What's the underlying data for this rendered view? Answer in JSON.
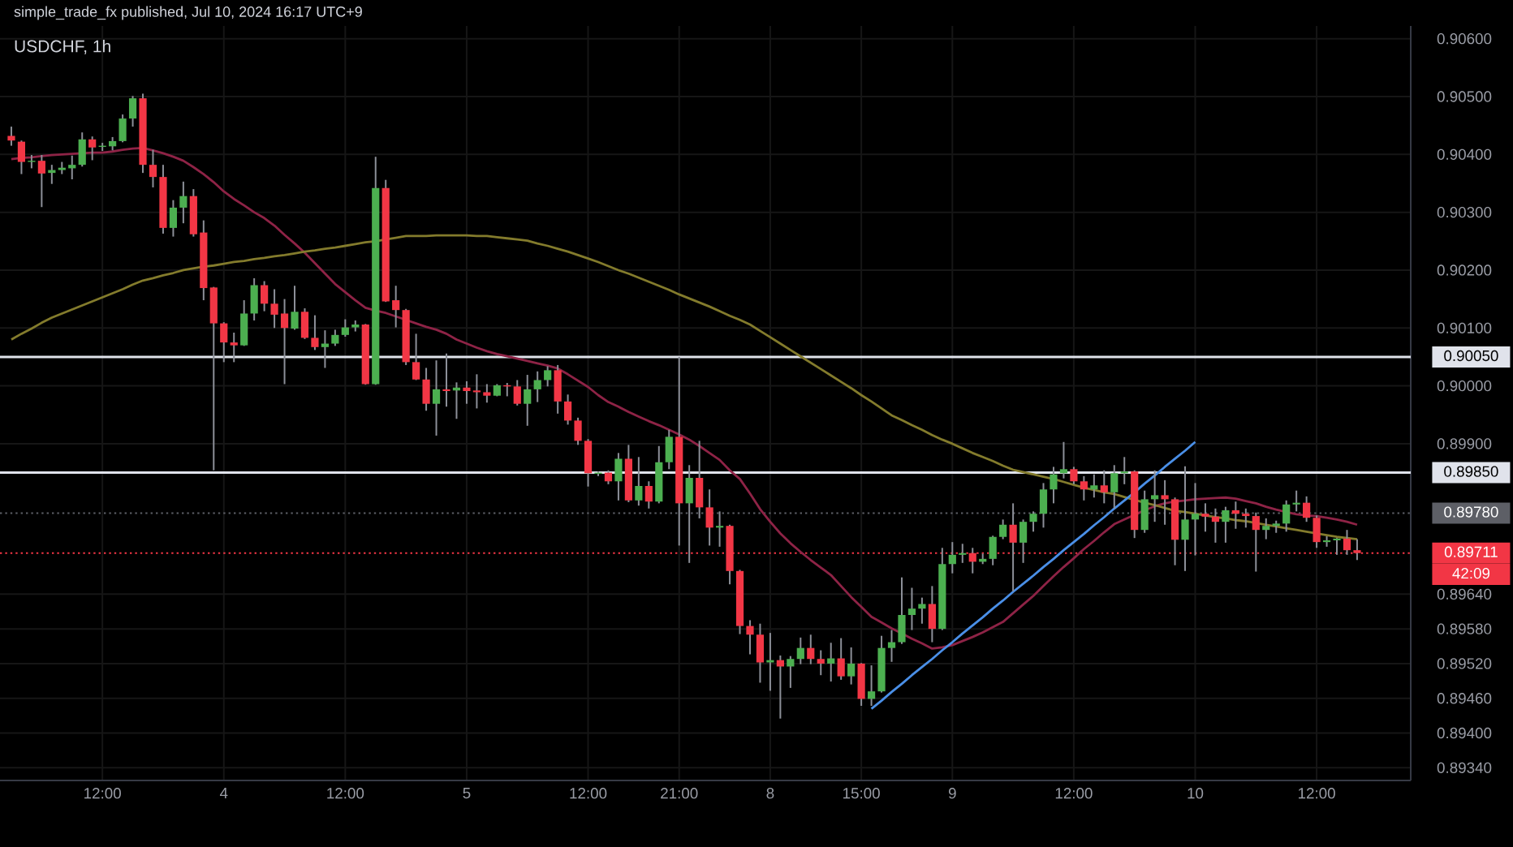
{
  "chart_data": {
    "type": "candlestick",
    "title": "USDCHF, 1h",
    "annotations": [
      "simple_trade_fx published, Jul 10, 2024 16:17 UTC+9",
      "42:09"
    ],
    "categories": [
      null,
      null,
      null,
      null,
      null,
      null,
      null,
      null,
      null,
      "12:00",
      null,
      null,
      null,
      null,
      null,
      null,
      null,
      null,
      null,
      null,
      null,
      "4",
      null,
      null,
      null,
      null,
      null,
      null,
      null,
      null,
      null,
      null,
      null,
      "12:00",
      null,
      null,
      null,
      null,
      null,
      null,
      null,
      null,
      null,
      null,
      null,
      "5",
      null,
      null,
      null,
      null,
      null,
      null,
      null,
      null,
      null,
      null,
      null,
      "12:00",
      null,
      null,
      null,
      null,
      null,
      null,
      null,
      null,
      "21:00",
      null,
      null,
      null,
      null,
      null,
      null,
      null,
      null,
      "8",
      null,
      null,
      null,
      null,
      null,
      null,
      null,
      null,
      "15:00",
      null,
      null,
      null,
      null,
      null,
      null,
      null,
      null,
      "9",
      null,
      null,
      null,
      null,
      null,
      null,
      null,
      null,
      null,
      null,
      null,
      "12:00",
      null,
      null,
      null,
      null,
      null,
      null,
      null,
      null,
      null,
      null,
      null,
      "10",
      null,
      null,
      null,
      null,
      null,
      null,
      null,
      null,
      null,
      null,
      null,
      "12:00",
      null,
      null,
      null,
      null
    ],
    "ohlc": [
      [
        0.90432,
        0.90448,
        0.90415,
        0.90424
      ],
      [
        0.90422,
        0.90424,
        0.90366,
        0.90387
      ],
      [
        0.90387,
        0.90399,
        0.90376,
        0.90389
      ],
      [
        0.90389,
        0.90399,
        0.90309,
        0.90367
      ],
      [
        0.90368,
        0.90382,
        0.90349,
        0.90373
      ],
      [
        0.90373,
        0.90387,
        0.90366,
        0.90377
      ],
      [
        0.90376,
        0.90398,
        0.90357,
        0.90382
      ],
      [
        0.90382,
        0.90438,
        0.90379,
        0.90426
      ],
      [
        0.90426,
        0.90431,
        0.9039,
        0.90412
      ],
      [
        0.90413,
        0.9042,
        0.90406,
        0.90415
      ],
      [
        0.90414,
        0.9043,
        0.90407,
        0.90423
      ],
      [
        0.90423,
        0.90469,
        0.90421,
        0.90462
      ],
      [
        0.90462,
        0.90501,
        0.90448,
        0.90497
      ],
      [
        0.90497,
        0.90505,
        0.90368,
        0.90382
      ],
      [
        0.90382,
        0.90408,
        0.90343,
        0.90361
      ],
      [
        0.90361,
        0.90382,
        0.90263,
        0.90273
      ],
      [
        0.90273,
        0.90321,
        0.90258,
        0.90308
      ],
      [
        0.90308,
        0.90353,
        0.90281,
        0.90328
      ],
      [
        0.90328,
        0.9034,
        0.90258,
        0.90262
      ],
      [
        0.90265,
        0.90286,
        0.90148,
        0.90169
      ],
      [
        0.9017,
        0.90171,
        0.89854,
        0.90108
      ],
      [
        0.90108,
        0.9011,
        0.90041,
        0.90075
      ],
      [
        0.90075,
        0.90092,
        0.90041,
        0.9007
      ],
      [
        0.9007,
        0.90148,
        0.90069,
        0.90125
      ],
      [
        0.90125,
        0.90186,
        0.90113,
        0.90174
      ],
      [
        0.90174,
        0.90181,
        0.90129,
        0.90142
      ],
      [
        0.90142,
        0.90167,
        0.901,
        0.90123
      ],
      [
        0.90125,
        0.9015,
        0.90003,
        0.901
      ],
      [
        0.90099,
        0.90173,
        0.90097,
        0.90128
      ],
      [
        0.90128,
        0.90134,
        0.90081,
        0.90083
      ],
      [
        0.90083,
        0.90122,
        0.90062,
        0.90067
      ],
      [
        0.90067,
        0.90096,
        0.90031,
        0.90073
      ],
      [
        0.90073,
        0.90097,
        0.90069,
        0.90088
      ],
      [
        0.90088,
        0.90115,
        0.90085,
        0.90101
      ],
      [
        0.90101,
        0.90113,
        0.90094,
        0.90106
      ],
      [
        0.90106,
        0.90107,
        0.90002,
        0.90003
      ],
      [
        0.90003,
        0.90396,
        0.90002,
        0.90342
      ],
      [
        0.90342,
        0.90356,
        0.90145,
        0.90146
      ],
      [
        0.90148,
        0.90173,
        0.90101,
        0.90131
      ],
      [
        0.90131,
        0.90133,
        0.90036,
        0.90041
      ],
      [
        0.90041,
        0.9009,
        0.9001,
        0.90011
      ],
      [
        0.90011,
        0.90031,
        0.89957,
        0.89969
      ],
      [
        0.89969,
        0.90044,
        0.89914,
        0.89994
      ],
      [
        0.89994,
        0.90056,
        0.89964,
        0.89991
      ],
      [
        0.89992,
        0.90006,
        0.89943,
        0.89997
      ],
      [
        0.89997,
        0.90008,
        0.89969,
        0.89991
      ],
      [
        0.89992,
        0.9002,
        0.89961,
        0.89989
      ],
      [
        0.89989,
        0.90003,
        0.89971,
        0.89983
      ],
      [
        0.89983,
        0.90003,
        0.89982,
        0.90001
      ],
      [
        0.90001,
        0.90005,
        0.89982,
        0.89999
      ],
      [
        0.89999,
        0.9001,
        0.89966,
        0.89969
      ],
      [
        0.89969,
        0.90019,
        0.89931,
        0.89994
      ],
      [
        0.89994,
        0.90025,
        0.89972,
        0.9001
      ],
      [
        0.9001,
        0.90034,
        0.89999,
        0.90027
      ],
      [
        0.90027,
        0.90036,
        0.89952,
        0.89973
      ],
      [
        0.89973,
        0.89985,
        0.89933,
        0.8994
      ],
      [
        0.8994,
        0.89945,
        0.89898,
        0.89905
      ],
      [
        0.89905,
        0.89908,
        0.89826,
        0.89849
      ],
      [
        0.89848,
        0.89852,
        0.89844,
        0.8985
      ],
      [
        0.8985,
        0.89854,
        0.8983,
        0.89835
      ],
      [
        0.89835,
        0.89884,
        0.89802,
        0.89874
      ],
      [
        0.89874,
        0.89898,
        0.89799,
        0.89802
      ],
      [
        0.89802,
        0.89877,
        0.89793,
        0.89827
      ],
      [
        0.89827,
        0.89835,
        0.89788,
        0.898
      ],
      [
        0.898,
        0.89896,
        0.89797,
        0.89868
      ],
      [
        0.89868,
        0.89924,
        0.89856,
        0.89912
      ],
      [
        0.89912,
        0.9005,
        0.89724,
        0.89797
      ],
      [
        0.89797,
        0.89863,
        0.89694,
        0.89841
      ],
      [
        0.89841,
        0.89905,
        0.89771,
        0.8979
      ],
      [
        0.8979,
        0.89821,
        0.89724,
        0.89755
      ],
      [
        0.89755,
        0.89783,
        0.89722,
        0.89758
      ],
      [
        0.89758,
        0.8976,
        0.89657,
        0.8968
      ],
      [
        0.8968,
        0.89682,
        0.89571,
        0.89585
      ],
      [
        0.89585,
        0.89595,
        0.89536,
        0.8957
      ],
      [
        0.8957,
        0.89589,
        0.89487,
        0.89522
      ],
      [
        0.89522,
        0.89573,
        0.89473,
        0.89526
      ],
      [
        0.89526,
        0.89534,
        0.89425,
        0.89515
      ],
      [
        0.89515,
        0.89533,
        0.89478,
        0.89528
      ],
      [
        0.89528,
        0.89565,
        0.89519,
        0.89547
      ],
      [
        0.89547,
        0.8957,
        0.89519,
        0.89528
      ],
      [
        0.89528,
        0.89543,
        0.895,
        0.8952
      ],
      [
        0.8952,
        0.89556,
        0.89489,
        0.89529
      ],
      [
        0.89529,
        0.89564,
        0.89492,
        0.89498
      ],
      [
        0.89498,
        0.89548,
        0.89484,
        0.8952
      ],
      [
        0.8952,
        0.89521,
        0.89447,
        0.89459
      ],
      [
        0.89459,
        0.89517,
        0.89447,
        0.89472
      ],
      [
        0.89472,
        0.89568,
        0.8947,
        0.89547
      ],
      [
        0.89547,
        0.89578,
        0.89523,
        0.89557
      ],
      [
        0.89557,
        0.89669,
        0.89554,
        0.89604
      ],
      [
        0.89604,
        0.89651,
        0.89578,
        0.89615
      ],
      [
        0.89615,
        0.89634,
        0.89589,
        0.89623
      ],
      [
        0.89623,
        0.89654,
        0.89557,
        0.8958
      ],
      [
        0.8958,
        0.8972,
        0.89578,
        0.89692
      ],
      [
        0.89692,
        0.8973,
        0.89676,
        0.89708
      ],
      [
        0.89708,
        0.89727,
        0.89694,
        0.89711
      ],
      [
        0.89711,
        0.8972,
        0.89676,
        0.89696
      ],
      [
        0.89696,
        0.8971,
        0.89692,
        0.89701
      ],
      [
        0.89701,
        0.89741,
        0.8969,
        0.89739
      ],
      [
        0.89739,
        0.89769,
        0.89735,
        0.8976
      ],
      [
        0.8976,
        0.89797,
        0.89645,
        0.89729
      ],
      [
        0.89729,
        0.89769,
        0.89694,
        0.89765
      ],
      [
        0.89765,
        0.89783,
        0.89748,
        0.89779
      ],
      [
        0.89779,
        0.89832,
        0.89755,
        0.89821
      ],
      [
        0.89821,
        0.8986,
        0.89797,
        0.89847
      ],
      [
        0.89849,
        0.89903,
        0.8984,
        0.89856
      ],
      [
        0.89856,
        0.8986,
        0.8983,
        0.89835
      ],
      [
        0.89835,
        0.89844,
        0.89802,
        0.89821
      ],
      [
        0.89821,
        0.89847,
        0.89807,
        0.89828
      ],
      [
        0.89828,
        0.89854,
        0.89797,
        0.89816
      ],
      [
        0.89816,
        0.89863,
        0.89788,
        0.89849
      ],
      [
        0.89849,
        0.89877,
        0.8983,
        0.89852
      ],
      [
        0.89852,
        0.89854,
        0.89737,
        0.89751
      ],
      [
        0.89751,
        0.89819,
        0.89746,
        0.89804
      ],
      [
        0.89804,
        0.89854,
        0.89765,
        0.89811
      ],
      [
        0.89811,
        0.89837,
        0.8976,
        0.89804
      ],
      [
        0.89804,
        0.89807,
        0.8969,
        0.89734
      ],
      [
        0.89734,
        0.89861,
        0.8968,
        0.89769
      ],
      [
        0.89769,
        0.89832,
        0.89707,
        0.89779
      ],
      [
        0.89779,
        0.89797,
        0.89748,
        0.89774
      ],
      [
        0.89774,
        0.89788,
        0.89729,
        0.89765
      ],
      [
        0.89765,
        0.89791,
        0.89729,
        0.89785
      ],
      [
        0.89785,
        0.898,
        0.89753,
        0.89779
      ],
      [
        0.89779,
        0.89788,
        0.89755,
        0.89775
      ],
      [
        0.89775,
        0.89781,
        0.89679,
        0.89751
      ],
      [
        0.89751,
        0.89771,
        0.89735,
        0.89758
      ],
      [
        0.89758,
        0.89767,
        0.89746,
        0.89762
      ],
      [
        0.89762,
        0.89802,
        0.89748,
        0.89795
      ],
      [
        0.89795,
        0.89819,
        0.89783,
        0.89798
      ],
      [
        0.89798,
        0.89809,
        0.89765,
        0.89772
      ],
      [
        0.89772,
        0.89776,
        0.8972,
        0.8973
      ],
      [
        0.8973,
        0.8974,
        0.89722,
        0.89733
      ],
      [
        0.89733,
        0.89737,
        0.89708,
        0.89736
      ],
      [
        0.89736,
        0.89751,
        0.89708,
        0.89716
      ],
      [
        0.89716,
        0.89735,
        0.89699,
        0.89711
      ]
    ],
    "colors": [
      "#f23645",
      "#f23645",
      "#4caf50",
      "#f23645",
      "#4caf50",
      "#4caf50",
      "#4caf50",
      "#4caf50",
      "#f23645",
      "#4caf50",
      "#4caf50",
      "#4caf50",
      "#4caf50",
      "#f23645",
      "#f23645",
      "#f23645",
      "#4caf50",
      "#4caf50",
      "#f23645",
      "#f23645",
      "#f23645",
      "#f23645",
      "#f23645",
      "#4caf50",
      "#4caf50",
      "#f23645",
      "#f23645",
      "#f23645",
      "#4caf50",
      "#f23645",
      "#f23645",
      "#4caf50",
      "#4caf50",
      "#4caf50",
      "#4caf50",
      "#f23645",
      "#4caf50",
      "#f23645",
      "#f23645",
      "#f23645",
      "#f23645",
      "#f23645",
      "#4caf50",
      "#f23645",
      "#4caf50",
      "#f23645",
      "#f23645",
      "#f23645",
      "#4caf50",
      "#f23645",
      "#f23645",
      "#4caf50",
      "#4caf50",
      "#4caf50",
      "#f23645",
      "#f23645",
      "#f23645",
      "#f23645",
      "#4caf50",
      "#f23645",
      "#4caf50",
      "#f23645",
      "#4caf50",
      "#f23645",
      "#4caf50",
      "#4caf50",
      "#f23645",
      "#4caf50",
      "#f23645",
      "#f23645",
      "#4caf50",
      "#f23645",
      "#f23645",
      "#f23645",
      "#f23645",
      "#4caf50",
      "#f23645",
      "#4caf50",
      "#4caf50",
      "#f23645",
      "#f23645",
      "#4caf50",
      "#f23645",
      "#4caf50",
      "#f23645",
      "#4caf50",
      "#4caf50",
      "#4caf50",
      "#4caf50",
      "#4caf50",
      "#4caf50",
      "#f23645",
      "#4caf50",
      "#4caf50",
      "#4caf50",
      "#f23645",
      "#4caf50",
      "#4caf50",
      "#4caf50",
      "#f23645",
      "#4caf50",
      "#4caf50",
      "#4caf50",
      "#4caf50",
      "#4caf50",
      "#f23645",
      "#f23645",
      "#4caf50",
      "#f23645",
      "#4caf50",
      "#4caf50",
      "#f23645",
      "#4caf50",
      "#4caf50",
      "#f23645",
      "#f23645",
      "#4caf50",
      "#4caf50",
      "#f23645",
      "#f23645",
      "#4caf50",
      "#f23645",
      "#f23645",
      "#f23645",
      "#4caf50",
      "#4caf50",
      "#4caf50",
      "#4caf50",
      "#f23645",
      "#f23645",
      "#4caf50",
      "#4caf50",
      "#f23645",
      "#f23645"
    ],
    "series": [
      {
        "type": "line",
        "color": "#8e2346",
        "values": [
          0.90392,
          0.90394,
          0.90395,
          0.90397,
          0.90399,
          0.904,
          0.90401,
          0.90402,
          0.90403,
          0.90403,
          0.90405,
          0.90408,
          0.9041,
          0.90411,
          0.90407,
          0.90402,
          0.90396,
          0.90389,
          0.90378,
          0.90366,
          0.90352,
          0.90336,
          0.90323,
          0.90312,
          0.903,
          0.9029,
          0.90277,
          0.90261,
          0.90246,
          0.9023,
          0.90212,
          0.90194,
          0.90176,
          0.90162,
          0.90148,
          0.90135,
          0.9013,
          0.90126,
          0.9012,
          0.90114,
          0.90108,
          0.90102,
          0.90097,
          0.9009,
          0.9008,
          0.90073,
          0.90066,
          0.9006,
          0.90055,
          0.90051,
          0.90047,
          0.90043,
          0.90039,
          0.90035,
          0.9003,
          0.9002,
          0.90009,
          0.89998,
          0.89984,
          0.89972,
          0.89964,
          0.89955,
          0.89947,
          0.89939,
          0.89932,
          0.89924,
          0.89916,
          0.89907,
          0.89896,
          0.89884,
          0.89872,
          0.89854,
          0.89839,
          0.89814,
          0.89787,
          0.89765,
          0.89745,
          0.89728,
          0.89713,
          0.89699,
          0.89686,
          0.89673,
          0.89654,
          0.89635,
          0.89618,
          0.89601,
          0.89591,
          0.89581,
          0.89572,
          0.89563,
          0.89555,
          0.89546,
          0.89548,
          0.89552,
          0.89559,
          0.89566,
          0.89574,
          0.89583,
          0.89592,
          0.89607,
          0.89622,
          0.89637,
          0.89654,
          0.89671,
          0.89687,
          0.89702,
          0.89718,
          0.89732,
          0.89747,
          0.89761,
          0.89769,
          0.89777,
          0.89785,
          0.89792,
          0.89797,
          0.898,
          0.89802,
          0.89804,
          0.89805,
          0.89806,
          0.89807,
          0.89805,
          0.89801,
          0.89797,
          0.89791,
          0.89786,
          0.89782,
          0.89778,
          0.89776,
          0.89775,
          0.89772,
          0.89769,
          0.89765,
          0.8976
        ]
      },
      {
        "type": "line",
        "color": "#837b2c",
        "values": [
          0.9008,
          0.9009,
          0.90099,
          0.90109,
          0.90118,
          0.90125,
          0.90132,
          0.90139,
          0.90146,
          0.90153,
          0.9016,
          0.90167,
          0.90175,
          0.90182,
          0.90186,
          0.90191,
          0.90195,
          0.902,
          0.90203,
          0.90206,
          0.90208,
          0.90211,
          0.90214,
          0.90216,
          0.90219,
          0.90221,
          0.90224,
          0.90226,
          0.90229,
          0.90232,
          0.90234,
          0.90237,
          0.90239,
          0.90242,
          0.90245,
          0.90248,
          0.9025,
          0.90253,
          0.90256,
          0.90259,
          0.90259,
          0.90259,
          0.9026,
          0.9026,
          0.9026,
          0.9026,
          0.90259,
          0.90259,
          0.90257,
          0.90255,
          0.90253,
          0.90251,
          0.90246,
          0.90242,
          0.90237,
          0.90232,
          0.90226,
          0.9022,
          0.90214,
          0.90207,
          0.902,
          0.90194,
          0.90187,
          0.9018,
          0.90173,
          0.90166,
          0.90158,
          0.90151,
          0.90144,
          0.90137,
          0.90129,
          0.90121,
          0.90114,
          0.90106,
          0.90095,
          0.90084,
          0.90073,
          0.90062,
          0.90051,
          0.9004,
          0.90029,
          0.90018,
          0.90007,
          0.89996,
          0.89984,
          0.89973,
          0.89961,
          0.89949,
          0.89941,
          0.89932,
          0.89924,
          0.89915,
          0.89907,
          0.899,
          0.89892,
          0.89884,
          0.89877,
          0.8987,
          0.89862,
          0.89855,
          0.89851,
          0.89847,
          0.89843,
          0.89839,
          0.89834,
          0.89829,
          0.89824,
          0.8982,
          0.89816,
          0.89813,
          0.89808,
          0.89803,
          0.89798,
          0.89794,
          0.89789,
          0.89784,
          0.89782,
          0.89779,
          0.89776,
          0.89773,
          0.89771,
          0.89768,
          0.89766,
          0.89763,
          0.8976,
          0.89757,
          0.89754,
          0.89751,
          0.89748,
          0.89745,
          0.89742,
          0.89739,
          0.89737,
          0.89735
        ]
      },
      {
        "type": "line",
        "color": "#4a8fe7",
        "values": [
          null,
          null,
          null,
          null,
          null,
          null,
          null,
          null,
          null,
          null,
          null,
          null,
          null,
          null,
          null,
          null,
          null,
          null,
          null,
          null,
          null,
          null,
          null,
          null,
          null,
          null,
          null,
          null,
          null,
          null,
          null,
          null,
          null,
          null,
          null,
          null,
          null,
          null,
          null,
          null,
          null,
          null,
          null,
          null,
          null,
          null,
          null,
          null,
          null,
          null,
          null,
          null,
          null,
          null,
          null,
          null,
          null,
          null,
          null,
          null,
          null,
          null,
          null,
          null,
          null,
          null,
          null,
          null,
          null,
          null,
          null,
          null,
          null,
          null,
          null,
          null,
          null,
          null,
          null,
          null,
          null,
          null,
          null,
          null,
          null,
          0.89442,
          0.89456,
          0.89471,
          0.89485,
          0.895,
          0.89514,
          0.89528,
          0.89543,
          0.89557,
          0.89572,
          0.89586,
          0.896,
          0.89615,
          0.89629,
          0.89644,
          0.89658,
          0.89672,
          0.89687,
          0.89701,
          0.89716,
          0.8973,
          0.89744,
          0.89759,
          0.89773,
          0.89788,
          0.89802,
          0.89816,
          0.89831,
          0.89845,
          0.8986,
          0.89874,
          0.89888,
          0.89903,
          null,
          null,
          null,
          null,
          null,
          null,
          null,
          null,
          null,
          null,
          null,
          null,
          null,
          null,
          null,
          null
        ]
      }
    ],
    "ylim": [
      0.89318,
      0.90622
    ],
    "yticks": [
      {
        "value": 0.8934,
        "label": "0.89340"
      },
      {
        "value": 0.894,
        "label": "0.89400"
      },
      {
        "value": 0.8946,
        "label": "0.89460"
      },
      {
        "value": 0.8952,
        "label": "0.89520"
      },
      {
        "value": 0.8958,
        "label": "0.89580"
      },
      {
        "value": 0.8964,
        "label": "0.89640"
      },
      {
        "value": 0.899,
        "label": "0.89900"
      },
      {
        "value": 0.9,
        "label": "0.90000"
      },
      {
        "value": 0.901,
        "label": "0.90100"
      },
      {
        "value": 0.902,
        "label": "0.90200"
      },
      {
        "value": 0.903,
        "label": "0.90300"
      },
      {
        "value": 0.904,
        "label": "0.90400"
      },
      {
        "value": 0.905,
        "label": "0.90500"
      },
      {
        "value": 0.906,
        "label": "0.90600"
      }
    ],
    "ref_lines": [
      {
        "axis": "y",
        "value": 0.9005,
        "label": "0.90050",
        "color": "#e0e3eb"
      },
      {
        "axis": "y",
        "value": 0.8985,
        "label": "0.89850",
        "color": "#e0e3eb"
      },
      {
        "axis": "y",
        "value": 0.8978,
        "label": "0.89780",
        "color": "#5d5f66",
        "line_style": "dotted"
      },
      {
        "axis": "y",
        "value": 0.89711,
        "label": "0.89711",
        "color": "#f23645",
        "line_style": "dotted"
      }
    ],
    "grid": true
  }
}
